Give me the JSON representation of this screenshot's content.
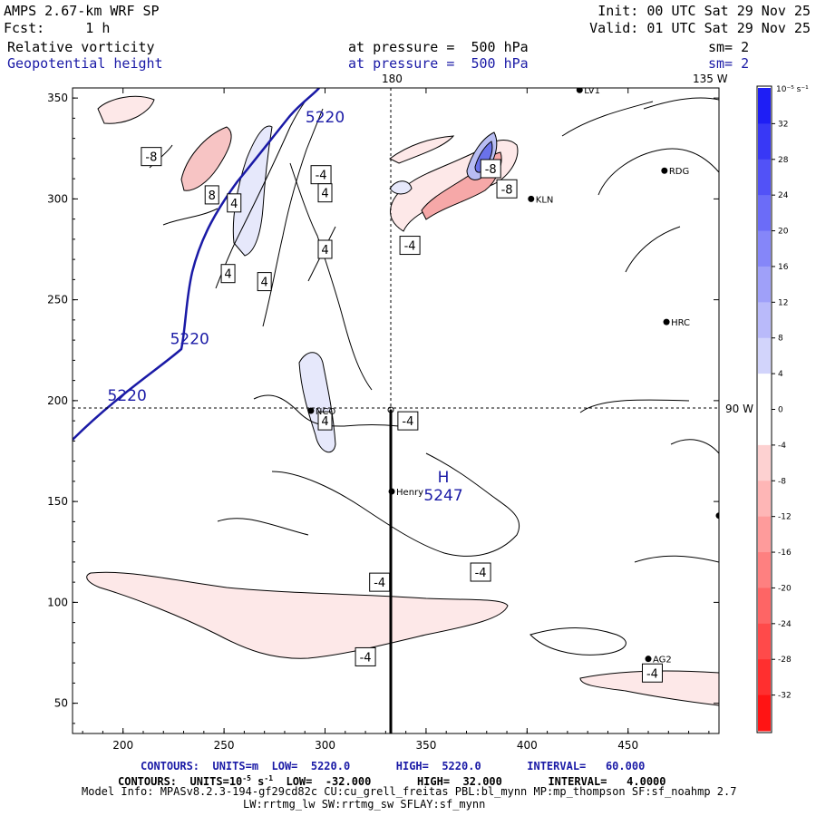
{
  "header": {
    "model": "AMPS 2.67-km WRF SP",
    "init": "Init: 00 UTC Sat 29 Nov 25",
    "fcst": "Fcst:     1 h",
    "valid": "Valid: 01 UTC Sat 29 Nov 25",
    "field1": "Relative vorticity",
    "field1_level": "at pressure =  500 hPa",
    "field1_sm": "sm= 2",
    "field2": "Geopotential height",
    "field2_level": "at pressure =  500 hPa",
    "field2_sm": "sm= 2"
  },
  "colors": {
    "neg_strong": "#ff2020",
    "neg_weak": "#fde8e8",
    "pos_strong": "#2020ff",
    "pos_weak": "#e6e8fb",
    "height_contour": "#1a1aa6",
    "vort_contour": "#000000"
  },
  "map_labels": {
    "lon_top_180": "180",
    "lon_top_135w": "135 W",
    "lon_right_90w": "90 W"
  },
  "stations": [
    {
      "name": "NCO",
      "x": 293,
      "y": 195
    },
    {
      "name": "Henry",
      "x": 333,
      "y": 155
    },
    {
      "name": "KLN",
      "x": 402,
      "y": 300
    },
    {
      "name": "RDG",
      "x": 468,
      "y": 314
    },
    {
      "name": "HRC",
      "x": 469,
      "y": 239
    },
    {
      "name": "AG2",
      "x": 460,
      "y": 72
    },
    {
      "name": "LV1",
      "x": 426,
      "y": 354
    },
    {
      "name": "",
      "x": 495,
      "y": 143
    }
  ],
  "chart_data": {
    "type": "contour",
    "title": "Relative vorticity / Geopotential height at 500 hPa",
    "xlim": [
      175,
      495
    ],
    "ylim": [
      35,
      355
    ],
    "x_ticks": [
      200,
      250,
      300,
      350,
      400,
      450
    ],
    "y_ticks": [
      50,
      100,
      150,
      200,
      250,
      300,
      350
    ],
    "height_contours": {
      "units": "m",
      "low": 5220.0,
      "high": 5220.0,
      "interval": 60.0,
      "labels": [
        "5220",
        "5220",
        "5220"
      ],
      "high_marker": {
        "label": "H",
        "value": "5247",
        "x": 355,
        "y": 154
      }
    },
    "vorticity_contours": {
      "units": "10^-5 s^-1",
      "low": -32.0,
      "high": 32.0,
      "interval": 4.0,
      "labels": [
        "-8",
        "8",
        "4",
        "4",
        "4",
        "4",
        "-4",
        "-4",
        "-8",
        "-8",
        "4",
        "4",
        "-4",
        "-4",
        "-4",
        "-4",
        "-4"
      ]
    },
    "colorbar": {
      "unit": "10⁻⁵ s⁻¹",
      "ticks": [
        32,
        28,
        24,
        20,
        16,
        12,
        8,
        4,
        0,
        -4,
        -8,
        -12,
        -16,
        -20,
        -24,
        -28,
        -32
      ]
    }
  },
  "footer": {
    "line1_label": "CONTOURS:  UNITS=m  LOW=  5220.0       HIGH=  5220.0       INTERVAL=   60.000",
    "line2_prefix": "CONTOURS:  UNITS=10",
    "line2_sup": "-5",
    "line2_mid": " s",
    "line2_sup2": "-1",
    "line2_suffix": "  LOW=  -32.000       HIGH=  32.000       INTERVAL=   4.0000",
    "line3": "Model Info: MPASv8.2.3-194-gf29cd82c CU:cu_grell_freitas PBL:bl_mynn MP:mp_thompson SF:sf_noahmp 2.7",
    "line4": "LW:rrtmg_lw SW:rrtmg_sw SFLAY:sf_mynn"
  }
}
